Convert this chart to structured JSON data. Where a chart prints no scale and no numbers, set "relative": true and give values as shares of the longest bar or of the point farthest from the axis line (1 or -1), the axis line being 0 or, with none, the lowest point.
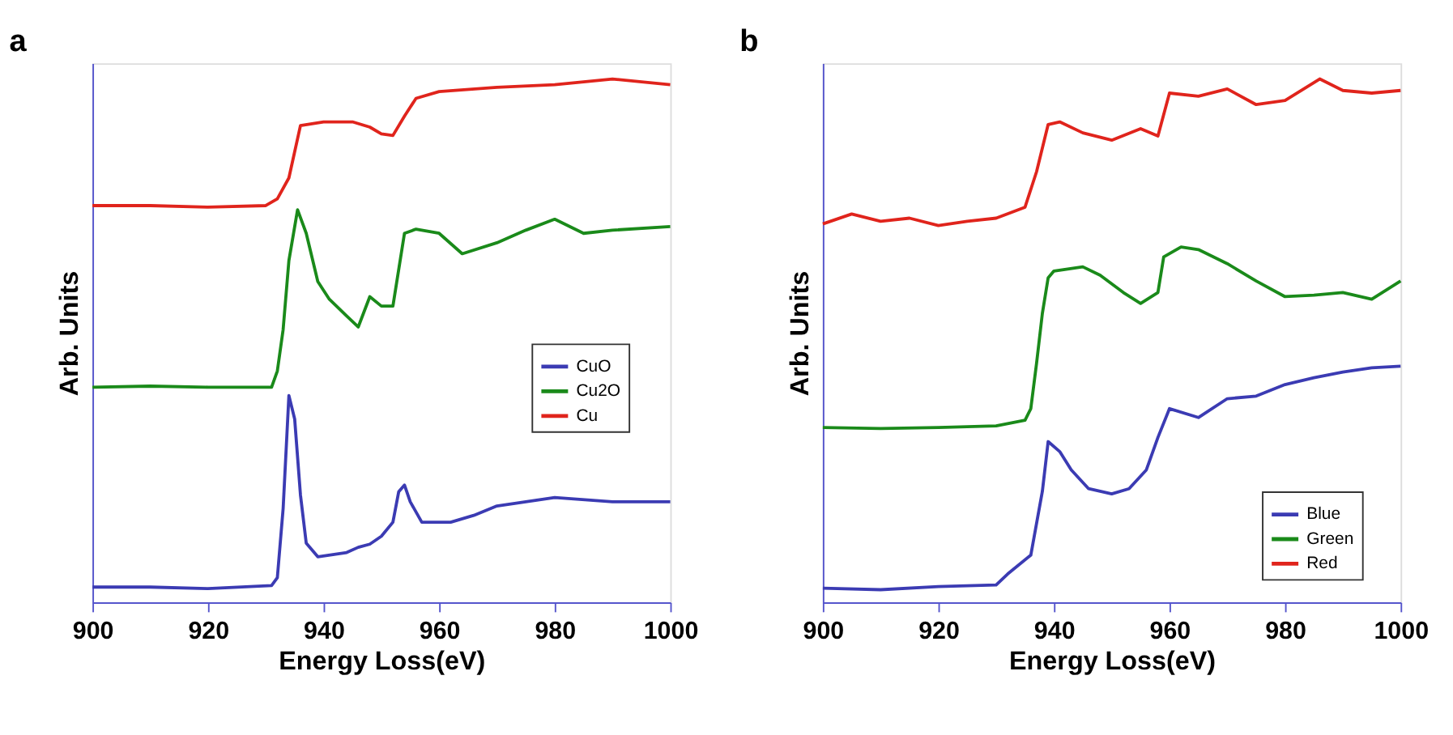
{
  "chart_data": [
    {
      "type": "line",
      "title": "a",
      "xlabel": "Energy Loss(eV)",
      "ylabel": "Arb. Units",
      "relative": true,
      "xlim": [
        900,
        1000
      ],
      "xticks": [
        900,
        920,
        940,
        960,
        980,
        1000
      ],
      "grid": false,
      "legend": "right",
      "marker": "none",
      "line_style": "solid",
      "series": [
        {
          "name": "CuO",
          "color": "#3b3bb3",
          "x": [
            900,
            910,
            920,
            931,
            932,
            933,
            934,
            935,
            936,
            937,
            939,
            944,
            946,
            948,
            950,
            952,
            953,
            954,
            955,
            957,
            962,
            966,
            970,
            975,
            980,
            990,
            1000
          ],
          "values": [
            0.029,
            0.029,
            0.026,
            0.032,
            0.047,
            0.179,
            0.395,
            0.35,
            0.205,
            0.113,
            0.087,
            0.095,
            0.105,
            0.111,
            0.126,
            0.153,
            0.211,
            0.224,
            0.192,
            0.153,
            0.153,
            0.166,
            0.184,
            0.192,
            0.2,
            0.192,
            0.192
          ]
        },
        {
          "name": "Cu2O",
          "color": "#1a8a1a",
          "x": [
            900,
            910,
            920,
            931,
            932,
            933,
            934,
            935.5,
            937,
            939,
            941,
            944,
            946,
            948,
            950,
            952,
            954,
            956,
            960,
            964,
            970,
            975,
            980,
            985,
            990,
            1000
          ],
          "values": [
            0.411,
            0.413,
            0.411,
            0.411,
            0.442,
            0.521,
            0.653,
            0.75,
            0.705,
            0.613,
            0.579,
            0.547,
            0.526,
            0.584,
            0.566,
            0.566,
            0.705,
            0.713,
            0.705,
            0.666,
            0.687,
            0.711,
            0.732,
            0.705,
            0.711,
            0.718
          ]
        },
        {
          "name": "Cu",
          "color": "#e0241c",
          "x": [
            900,
            910,
            920,
            930,
            932,
            934,
            936,
            940,
            945,
            948,
            950,
            952,
            954,
            956,
            960,
            970,
            980,
            990,
            1000
          ],
          "values": [
            0.758,
            0.758,
            0.755,
            0.758,
            0.771,
            0.811,
            0.911,
            0.918,
            0.918,
            0.908,
            0.895,
            0.892,
            0.929,
            0.963,
            0.976,
            0.984,
            0.989,
            1,
            0.989
          ]
        }
      ]
    },
    {
      "type": "line",
      "title": "b",
      "xlabel": "Energy Loss(eV)",
      "ylabel": "Arb. Units",
      "relative": true,
      "xlim": [
        900,
        1000
      ],
      "xticks": [
        900,
        920,
        940,
        960,
        980,
        1000
      ],
      "grid": false,
      "legend": "bottom right",
      "marker": "none",
      "line_style": "solid",
      "series": [
        {
          "name": "Blue",
          "color": "#3b3bb3",
          "x": [
            900,
            910,
            920,
            930,
            932,
            936,
            938,
            939,
            941,
            943,
            946,
            950,
            953,
            956,
            958,
            960,
            965,
            970,
            975,
            980,
            985,
            990,
            995,
            1000
          ],
          "values": [
            0.027,
            0.024,
            0.03,
            0.033,
            0.054,
            0.09,
            0.212,
            0.307,
            0.288,
            0.253,
            0.217,
            0.207,
            0.217,
            0.253,
            0.315,
            0.37,
            0.353,
            0.389,
            0.394,
            0.416,
            0.429,
            0.44,
            0.448,
            0.451
          ]
        },
        {
          "name": "Green",
          "color": "#1a8a1a",
          "x": [
            900,
            910,
            920,
            930,
            935,
            936,
            937,
            938,
            939,
            940,
            945,
            948,
            952,
            955,
            958,
            959,
            962,
            965,
            970,
            975,
            980,
            985,
            990,
            995,
            1000
          ],
          "values": [
            0.334,
            0.332,
            0.334,
            0.337,
            0.348,
            0.37,
            0.457,
            0.552,
            0.62,
            0.633,
            0.641,
            0.625,
            0.592,
            0.571,
            0.592,
            0.66,
            0.679,
            0.674,
            0.647,
            0.614,
            0.584,
            0.587,
            0.592,
            0.579,
            0.614
          ]
        },
        {
          "name": "Red",
          "color": "#e0241c",
          "x": [
            900,
            905,
            910,
            915,
            920,
            925,
            930,
            935,
            937,
            939,
            941,
            945,
            950,
            955,
            958,
            960,
            965,
            970,
            975,
            980,
            986,
            990,
            995,
            1000
          ],
          "values": [
            0.723,
            0.742,
            0.728,
            0.734,
            0.72,
            0.728,
            0.734,
            0.755,
            0.823,
            0.913,
            0.918,
            0.897,
            0.883,
            0.905,
            0.891,
            0.973,
            0.967,
            0.981,
            0.951,
            0.959,
            1,
            0.978,
            0.973,
            0.978
          ]
        }
      ]
    }
  ]
}
